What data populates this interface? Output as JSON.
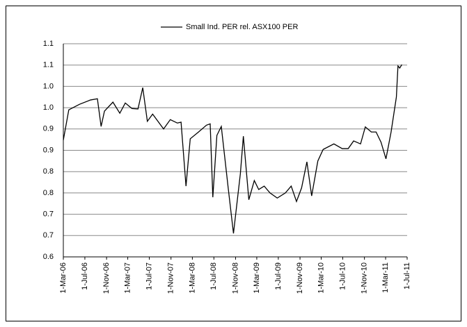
{
  "chart_data": {
    "type": "line",
    "series": [
      {
        "name": "Small Ind. PER rel. ASX100 PER",
        "color": "#000000",
        "x": [
          "1-Mar-06",
          "1-Apr-06",
          "1-Jun-06",
          "1-Aug-06",
          "10-Sep-06",
          "1-Oct-06",
          "20-Oct-06",
          "7-Dec-06",
          "15-Jan-07",
          "15-Feb-07",
          "25-Mar-07",
          "28-Apr-07",
          "25-May-07",
          "20-Jun-07",
          "20-Jul-07",
          "20-Sep-07",
          "28-Oct-07",
          "7-Dec-07",
          "28-Dec-07",
          "25-Jan-08",
          "18-Feb-08",
          "5-Apr-08",
          "20-May-08",
          "10-Jun-08",
          "25-Jun-08",
          "18-Jul-08",
          "12-Aug-08",
          "20-Sep-08",
          "20-Oct-08",
          "28-Nov-08",
          "15-Dec-08",
          "15-Jan-09",
          "15-Feb-09",
          "12-Mar-09",
          "12-Apr-09",
          "15-May-09",
          "25-Jun-09",
          "10-Aug-09",
          "12-Sep-09",
          "12-Oct-09",
          "10-Nov-09",
          "10-Dec-09",
          "6-Jan-10",
          "10-Feb-10",
          "12-Mar-10",
          "12-May-10",
          "28-Jun-10",
          "1-Aug-10",
          "1-Sep-10",
          "10-Oct-10",
          "6-Nov-10",
          "10-Dec-10",
          "6-Jan-11",
          "3-Feb-11",
          "3-Mar-11",
          "1-Apr-11",
          "1-May-11",
          "10-May-11",
          "20-May-11",
          "1-Jun-11"
        ],
        "values": [
          0.874,
          0.945,
          0.958,
          0.968,
          0.971,
          0.906,
          0.942,
          0.963,
          0.937,
          0.961,
          0.948,
          0.947,
          0.997,
          0.918,
          0.935,
          0.9,
          0.922,
          0.914,
          0.916,
          0.766,
          0.877,
          0.893,
          0.909,
          0.912,
          0.74,
          0.885,
          0.906,
          0.762,
          0.655,
          0.795,
          0.883,
          0.734,
          0.779,
          0.758,
          0.766,
          0.75,
          0.738,
          0.75,
          0.766,
          0.73,
          0.762,
          0.823,
          0.743,
          0.825,
          0.852,
          0.865,
          0.854,
          0.854,
          0.872,
          0.865,
          0.905,
          0.893,
          0.893,
          0.869,
          0.83,
          0.893,
          0.975,
          1.048,
          1.043,
          1.051
        ]
      }
    ],
    "xlim": [
      "1-Mar-06",
      "1-Jul-11"
    ],
    "xticks": [
      "1-Mar-06",
      "1-Jul-06",
      "1-Nov-06",
      "1-Mar-07",
      "1-Jul-07",
      "1-Nov-07",
      "1-Mar-08",
      "1-Jul-08",
      "1-Nov-08",
      "1-Mar-09",
      "1-Jul-09",
      "1-Nov-09",
      "1-Mar-10",
      "1-Jul-10",
      "1-Nov-10",
      "1-Mar-11",
      "1-Jul-11"
    ],
    "ylim": [
      0.6,
      1.1
    ],
    "yticks": [
      0.6,
      {
        "value": 0.65,
        "label": "0.7"
      },
      0.7,
      {
        "value": 0.75,
        "label": "0.8"
      },
      0.8,
      {
        "value": 0.85,
        "label": "0.9"
      },
      0.9,
      {
        "value": 0.95,
        "label": "1.0"
      },
      {
        "value": 1.0,
        "label": "1.0"
      },
      {
        "value": 1.05,
        "label": "1.1"
      },
      1.1
    ],
    "grid": true,
    "legend": "top"
  }
}
